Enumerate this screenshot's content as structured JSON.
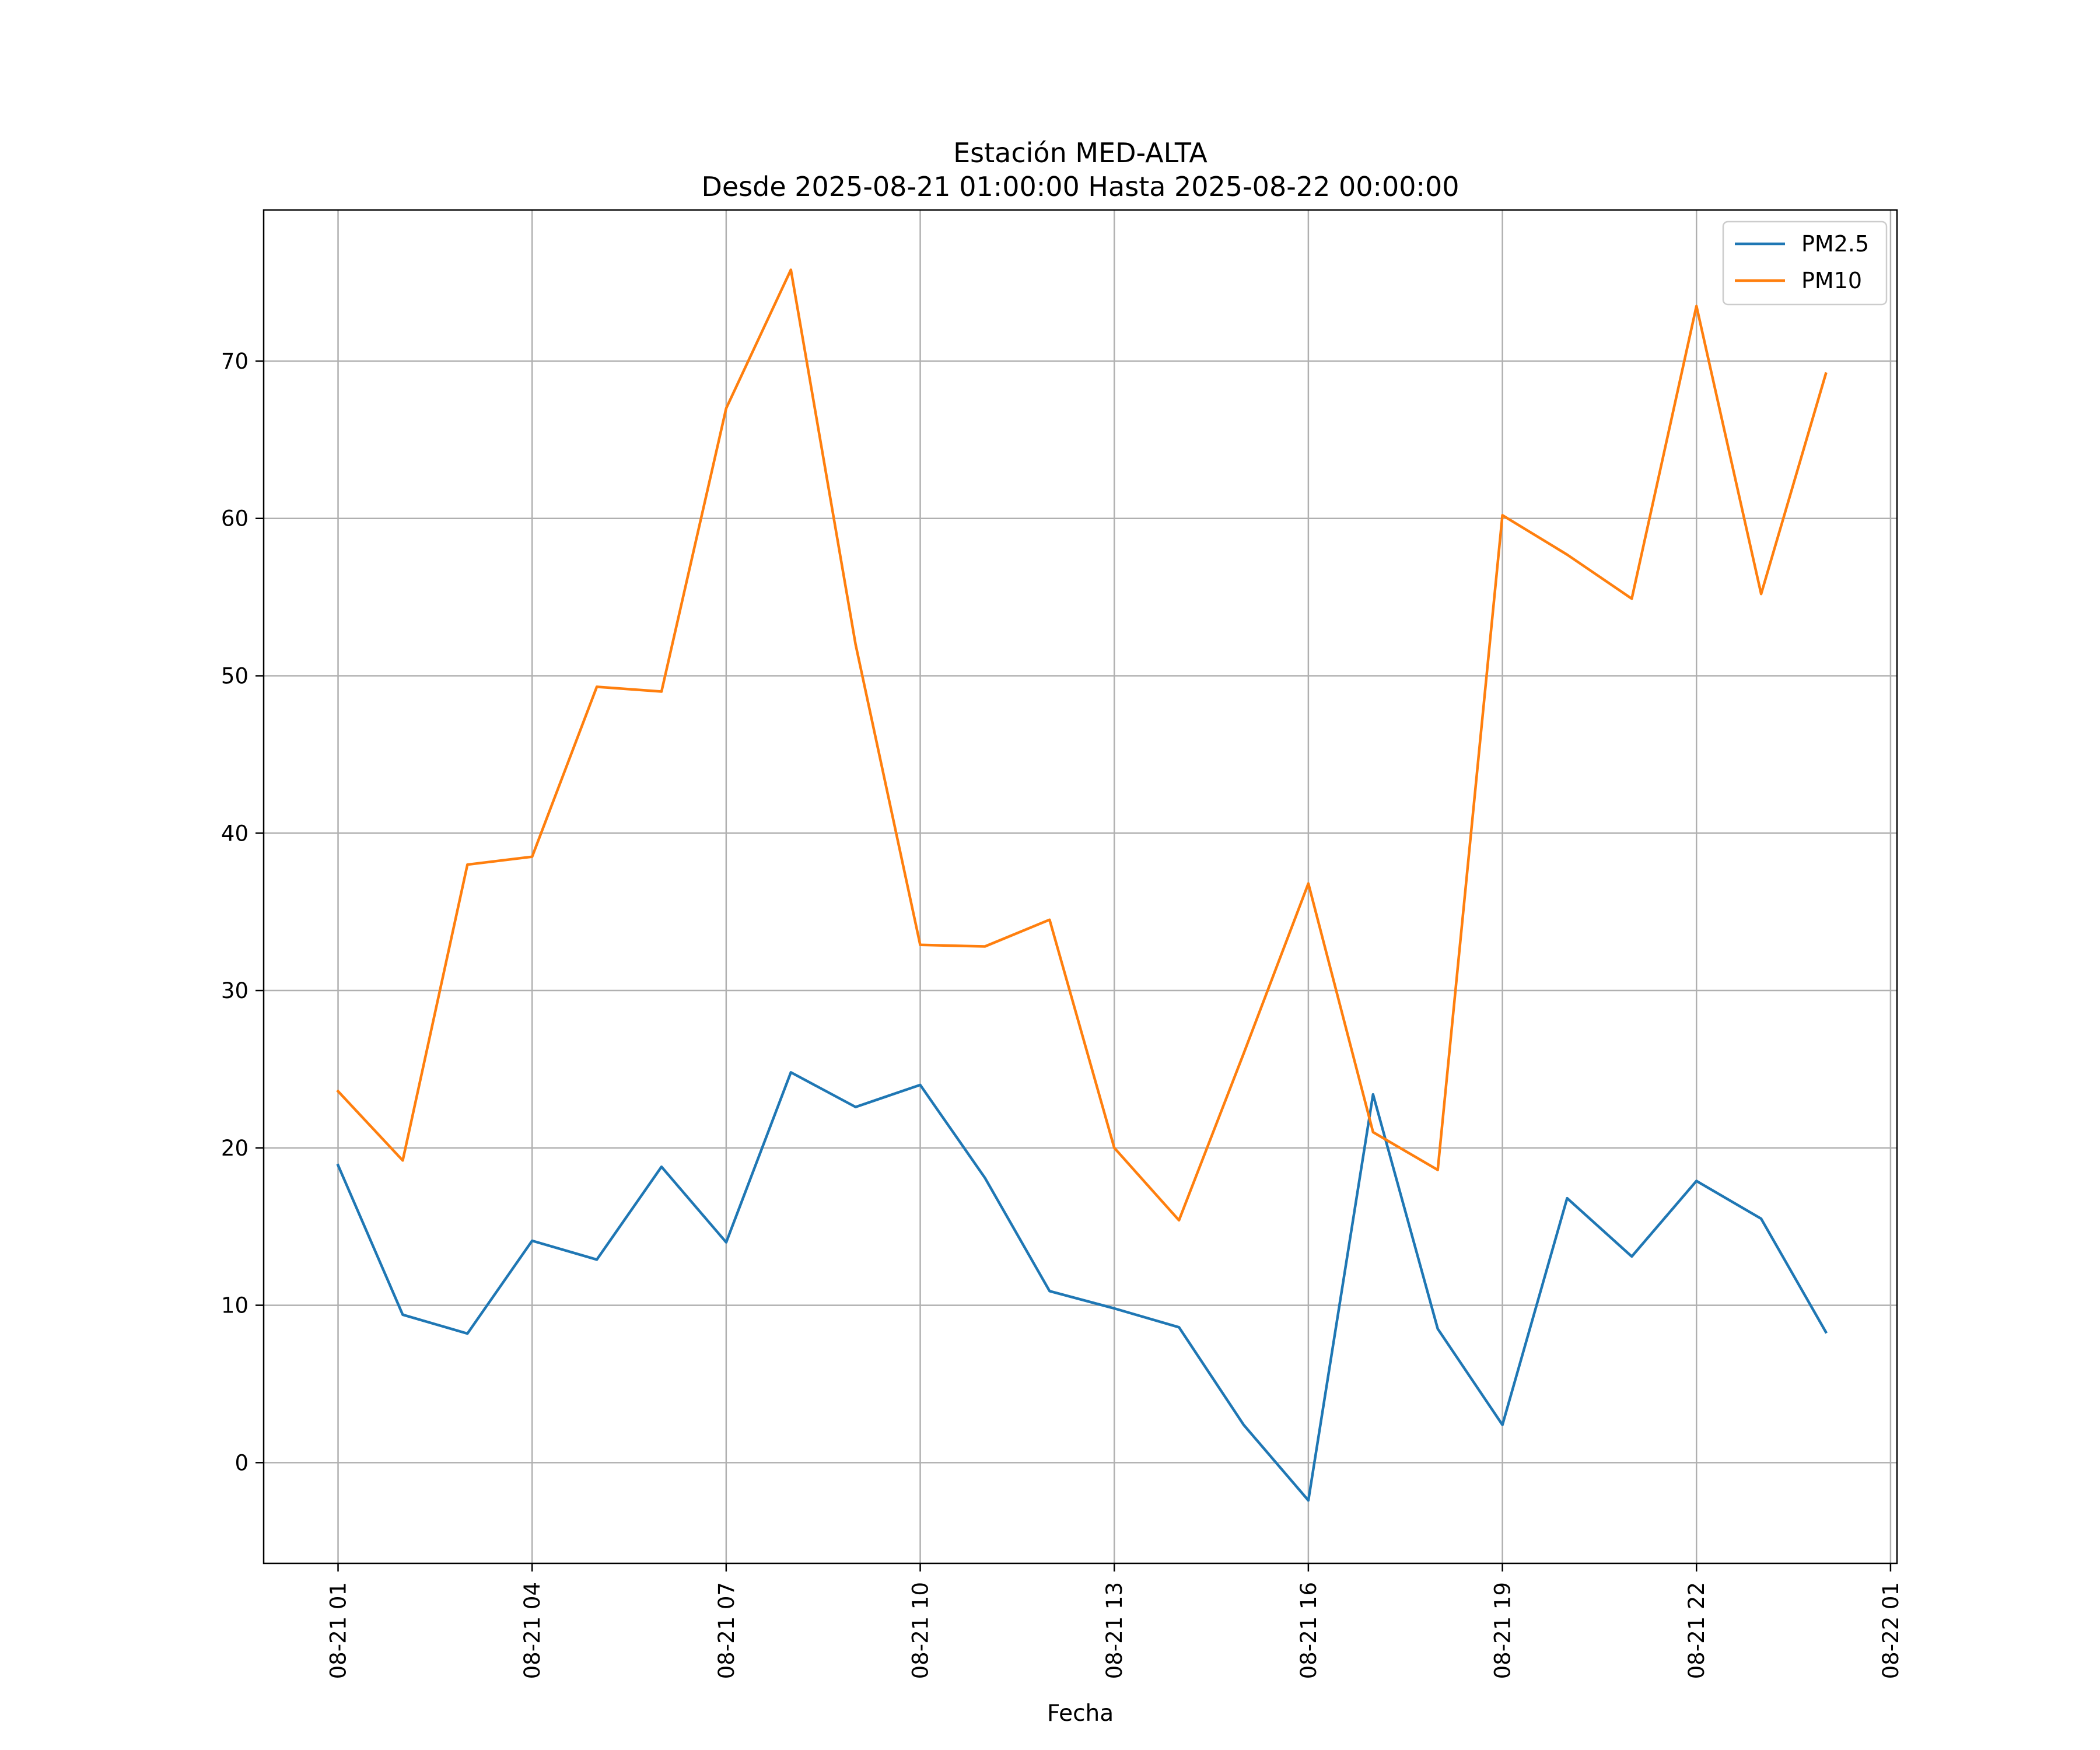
{
  "chart_data": {
    "type": "line",
    "title": [
      "Estación MED-ALTA",
      "Desde 2025-08-21 01:00:00 Hasta 2025-08-22 00:00:00"
    ],
    "xlabel": "Fecha",
    "ylabel": "",
    "x": [
      "08-21 01",
      "08-21 02",
      "08-21 03",
      "08-21 04",
      "08-21 05",
      "08-21 06",
      "08-21 07",
      "08-21 08",
      "08-21 09",
      "08-21 10",
      "08-21 11",
      "08-21 12",
      "08-21 13",
      "08-21 14",
      "08-21 15",
      "08-21 16",
      "08-21 17",
      "08-21 18",
      "08-21 19",
      "08-21 20",
      "08-21 21",
      "08-21 22",
      "08-21 23",
      "08-22 00"
    ],
    "x_hours": [
      1,
      2,
      3,
      4,
      5,
      6,
      7,
      8,
      9,
      10,
      11,
      12,
      13,
      14,
      15,
      16,
      17,
      18,
      19,
      20,
      21,
      22,
      23,
      24
    ],
    "xlim": [
      -0.15,
      25.1
    ],
    "xticks": [
      1,
      4,
      7,
      10,
      13,
      16,
      19,
      22,
      25
    ],
    "xtick_labels": [
      "08-21 01",
      "08-21 04",
      "08-21 07",
      "08-21 10",
      "08-21 13",
      "08-21 16",
      "08-21 19",
      "08-21 22",
      "08-22 01"
    ],
    "ylim": [
      -6.4,
      79.6
    ],
    "yticks": [
      0,
      10,
      20,
      30,
      40,
      50,
      60,
      70
    ],
    "grid": true,
    "legend": "top-right",
    "series": [
      {
        "name": "PM2.5",
        "color": "#1f77b4",
        "values": [
          18.9,
          9.4,
          8.2,
          14.1,
          12.9,
          18.8,
          14.0,
          24.8,
          22.6,
          24.0,
          18.1,
          10.9,
          9.8,
          8.6,
          2.4,
          -2.4,
          23.4,
          8.5,
          2.4,
          16.8,
          13.1,
          17.9,
          15.5,
          8.3
        ]
      },
      {
        "name": "PM10",
        "color": "#ff7f0e",
        "values": [
          23.6,
          19.2,
          38.0,
          38.5,
          49.3,
          49.0,
          67.0,
          75.8,
          52.0,
          32.9,
          32.8,
          34.5,
          20.0,
          15.4,
          26.0,
          36.8,
          21.0,
          18.6,
          60.2,
          57.7,
          54.9,
          73.5,
          55.2,
          69.2
        ]
      }
    ]
  }
}
